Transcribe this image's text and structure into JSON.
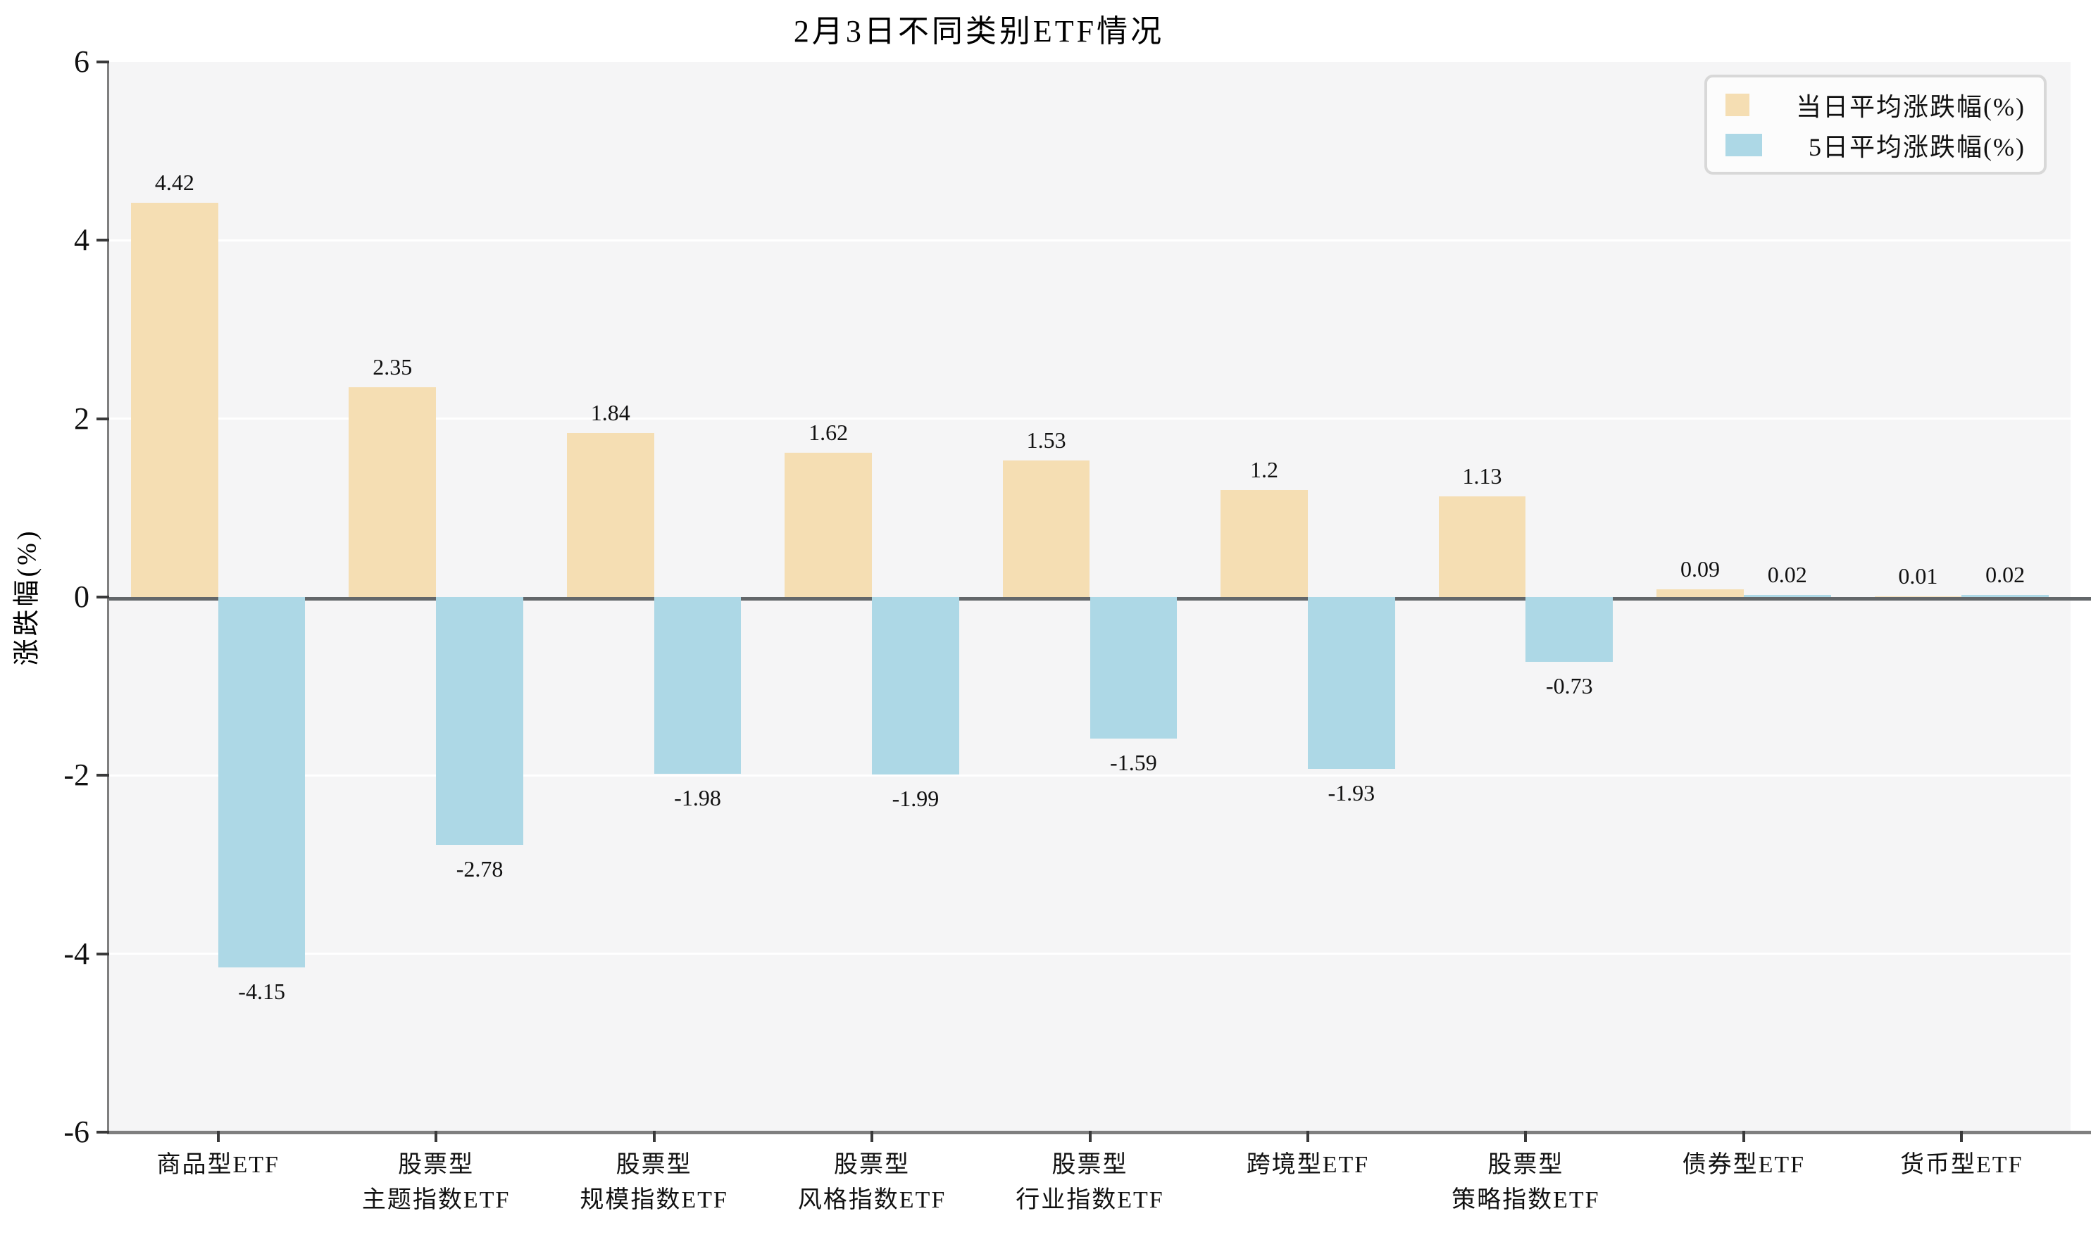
{
  "title": "2月3日不同类别ETF情况",
  "ylabel": "涨跌幅(%)",
  "legend": {
    "items": [
      {
        "label": "当日平均涨跌幅(%)",
        "color": "#F5DEB3"
      },
      {
        "label": "5日平均涨跌幅(%)",
        "color": "#ADD8E6"
      }
    ]
  },
  "colors": {
    "plot_background": "#f5f5f6",
    "gridline": "#ffffff",
    "spine": "#7f7f7f",
    "zero_line": "#63676a",
    "series_daily": "#F5DEB3",
    "series_5day": "#ADD8E6"
  },
  "chart_data": {
    "type": "bar",
    "title": "2月3日不同类别ETF情况",
    "xlabel": "",
    "ylabel": "涨跌幅(%)",
    "ylim": [
      -6,
      6
    ],
    "yticks": [
      6,
      4,
      2,
      0,
      -2,
      -4,
      -6
    ],
    "grid": true,
    "legend_position": "upper right",
    "categories": [
      "商品型ETF",
      "股票型\n主题指数ETF",
      "股票型\n规模指数ETF",
      "股票型\n风格指数ETF",
      "股票型\n行业指数ETF",
      "跨境型ETF",
      "股票型\n策略指数ETF",
      "债券型ETF",
      "货币型ETF"
    ],
    "series": [
      {
        "name": "当日平均涨跌幅(%)",
        "color": "#F5DEB3",
        "values": [
          4.42,
          2.35,
          1.84,
          1.62,
          1.53,
          1.2,
          1.13,
          0.09,
          0.01
        ],
        "labels": [
          "4.42",
          "2.35",
          "1.84",
          "1.62",
          "1.53",
          "1.2",
          "1.13",
          "0.09",
          "0.01"
        ]
      },
      {
        "name": "5日平均涨跌幅(%)",
        "color": "#ADD8E6",
        "values": [
          -4.15,
          -2.78,
          -1.98,
          -1.99,
          -1.59,
          -1.93,
          -0.73,
          0.02,
          0.02
        ],
        "labels": [
          "-4.15",
          "-2.78",
          "-1.98",
          "-1.99",
          "-1.59",
          "-1.93",
          "-0.73",
          "0.02",
          "0.02"
        ]
      }
    ]
  }
}
